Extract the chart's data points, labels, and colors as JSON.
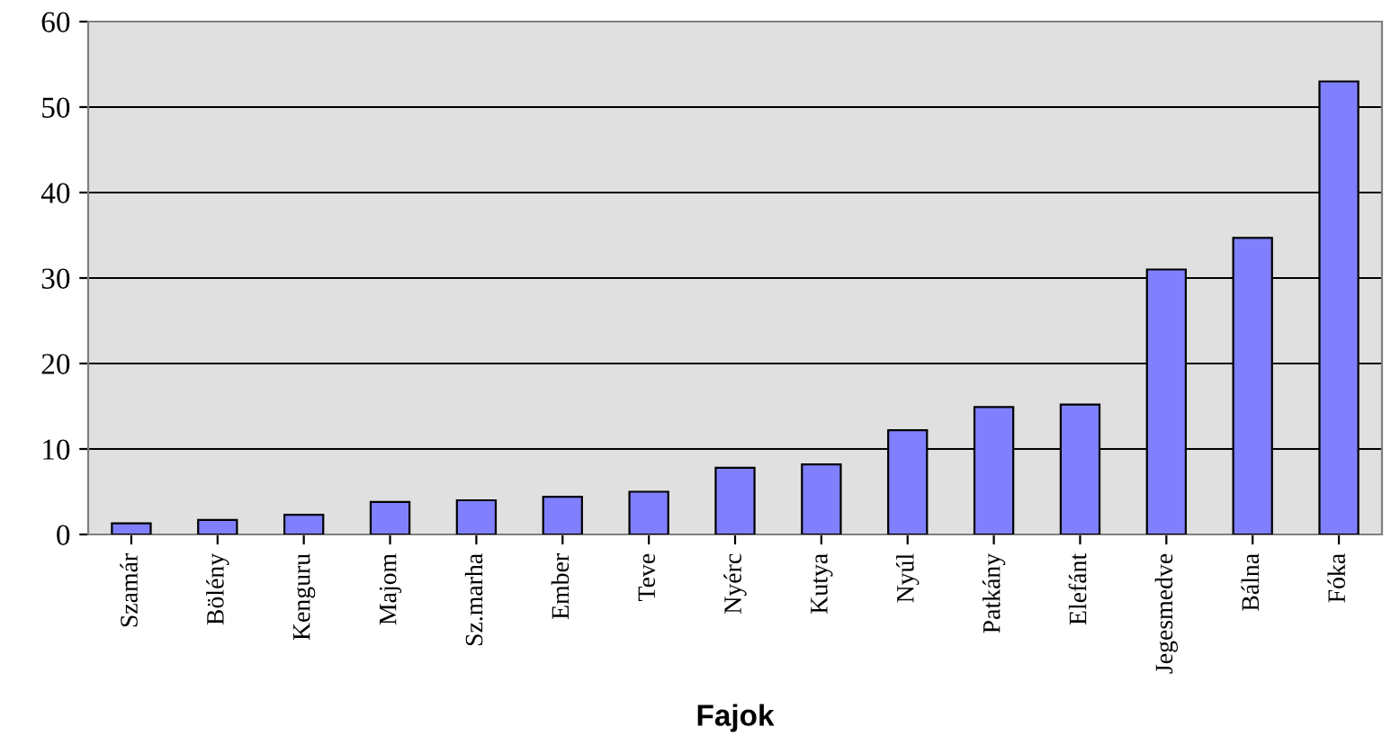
{
  "chart_data": {
    "type": "bar",
    "categories": [
      "Szamár",
      "Bölény",
      "Kenguru",
      "Majom",
      "Sz.marha",
      "Ember",
      "Teve",
      "Nyérc",
      "Kutya",
      "Nyúl",
      "Patkány",
      "Elefánt",
      "Jegesmedve",
      "Bálna",
      "Fóka"
    ],
    "values": [
      1.3,
      1.7,
      2.3,
      3.8,
      4.0,
      4.4,
      5.0,
      7.8,
      8.2,
      12.2,
      14.9,
      15.2,
      31,
      34.7,
      53
    ],
    "color": "#8080ff",
    "xlabel": "Fajok",
    "ylim": [
      0,
      60
    ],
    "yticks": [
      0,
      10,
      20,
      30,
      40,
      50,
      60
    ],
    "grid": "y",
    "legend": false
  }
}
